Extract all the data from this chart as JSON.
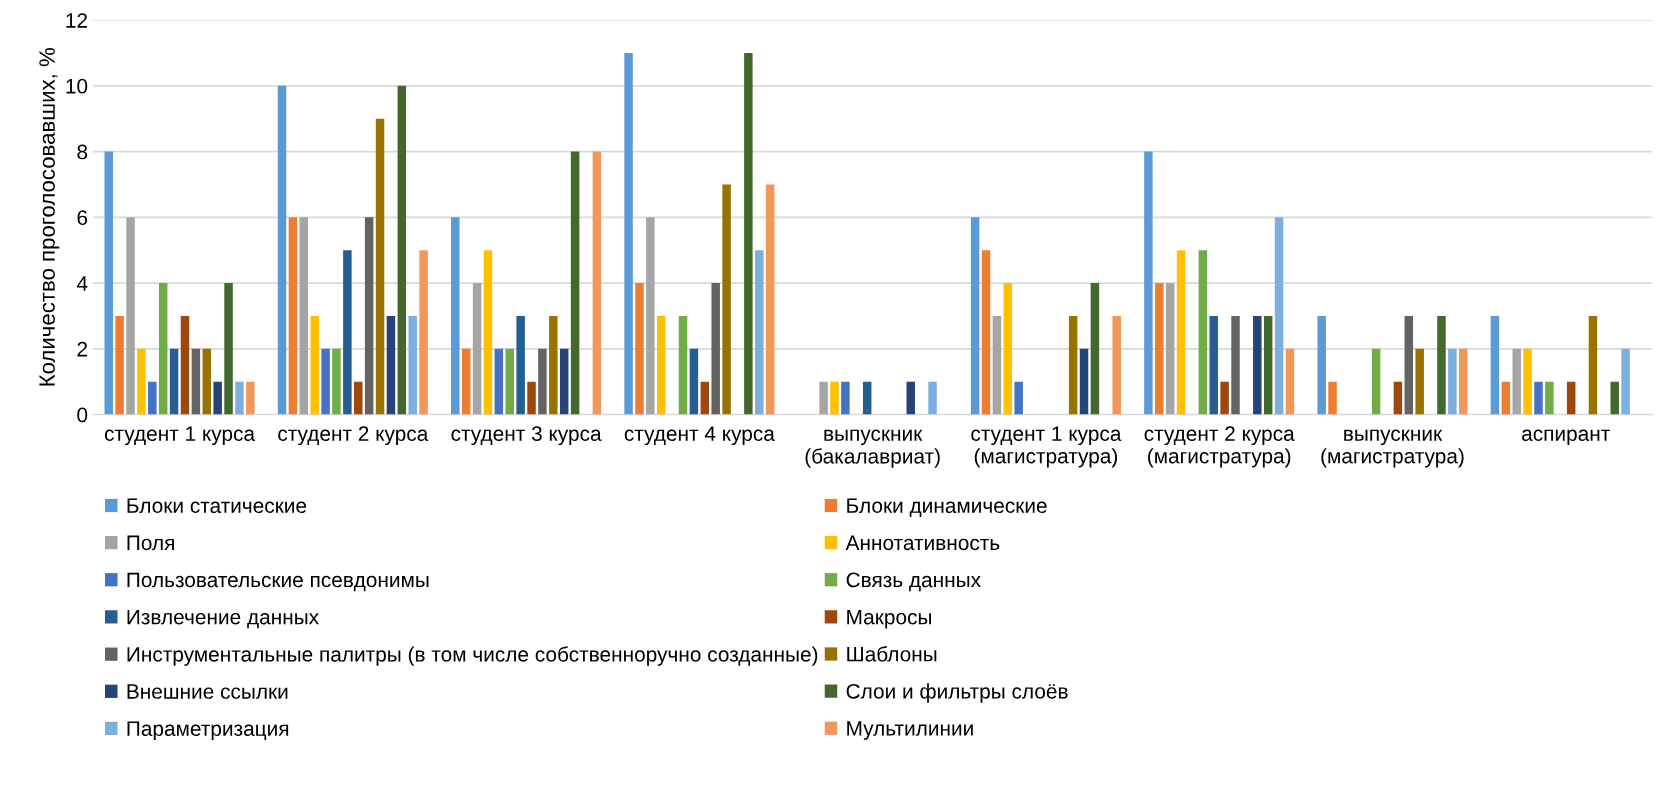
{
  "chart_data": {
    "type": "bar",
    "ylabel": "Количество проголосовавших, %",
    "categories": [
      "студент 1 курса",
      "студент 2 курса",
      "студент 3 курса",
      "студент 4 курса",
      "выпускник\n(бакалавриат)",
      "студент 1 курса\n(магистратура)",
      "студент 2 курса\n(магистратура)",
      "выпускник\n(магистратура)",
      "аспирант"
    ],
    "series": [
      {
        "name": "Блоки статические",
        "color": "#5b9bd5",
        "values": [
          8,
          10,
          6,
          11,
          0,
          6,
          8,
          3,
          3
        ]
      },
      {
        "name": "Блоки динамические",
        "color": "#ed7d31",
        "values": [
          3,
          6,
          2,
          4,
          0,
          5,
          4,
          1,
          1
        ]
      },
      {
        "name": "Поля",
        "color": "#a5a5a5",
        "values": [
          6,
          6,
          4,
          6,
          1,
          3,
          4,
          0,
          2
        ]
      },
      {
        "name": "Аннотативность",
        "color": "#ffc000",
        "values": [
          2,
          3,
          5,
          3,
          1,
          4,
          5,
          0,
          2
        ]
      },
      {
        "name": "Пользовательские псевдонимы",
        "color": "#4472c4",
        "values": [
          1,
          2,
          2,
          0,
          1,
          1,
          0,
          0,
          1
        ]
      },
      {
        "name": "Связь данных",
        "color": "#70ad47",
        "values": [
          4,
          2,
          2,
          3,
          0,
          0,
          5,
          2,
          1
        ]
      },
      {
        "name": "Извлечение данных",
        "color": "#255e91",
        "values": [
          2,
          5,
          3,
          2,
          1,
          0,
          3,
          0,
          0
        ]
      },
      {
        "name": "Макросы",
        "color": "#9e480e",
        "values": [
          3,
          1,
          1,
          1,
          0,
          0,
          1,
          1,
          1
        ]
      },
      {
        "name": "Инструментальные палитры (в том числе собственноручно созданные)",
        "color": "#636363",
        "values": [
          2,
          6,
          2,
          4,
          0,
          0,
          3,
          3,
          0
        ]
      },
      {
        "name": "Шаблоны",
        "color": "#997300",
        "values": [
          2,
          9,
          3,
          7,
          0,
          3,
          0,
          2,
          3
        ]
      },
      {
        "name": "Внешние ссылки",
        "color": "#264478",
        "values": [
          1,
          3,
          2,
          0,
          1,
          2,
          3,
          0,
          0
        ]
      },
      {
        "name": "Слои и фильтры слоёв",
        "color": "#43682b",
        "values": [
          4,
          10,
          8,
          11,
          0,
          4,
          3,
          3,
          1
        ]
      },
      {
        "name": "Параметризация",
        "color": "#7cafdd",
        "values": [
          1,
          3,
          0,
          5,
          1,
          0,
          6,
          2,
          2
        ]
      },
      {
        "name": "Мультилинии",
        "color": "#f1975a",
        "values": [
          1,
          5,
          8,
          7,
          0,
          3,
          2,
          2,
          0
        ]
      }
    ],
    "ylim": [
      0,
      12
    ],
    "yticks": [
      0,
      2,
      4,
      6,
      8,
      10,
      12
    ],
    "grid": "y",
    "legend": "bottom"
  }
}
